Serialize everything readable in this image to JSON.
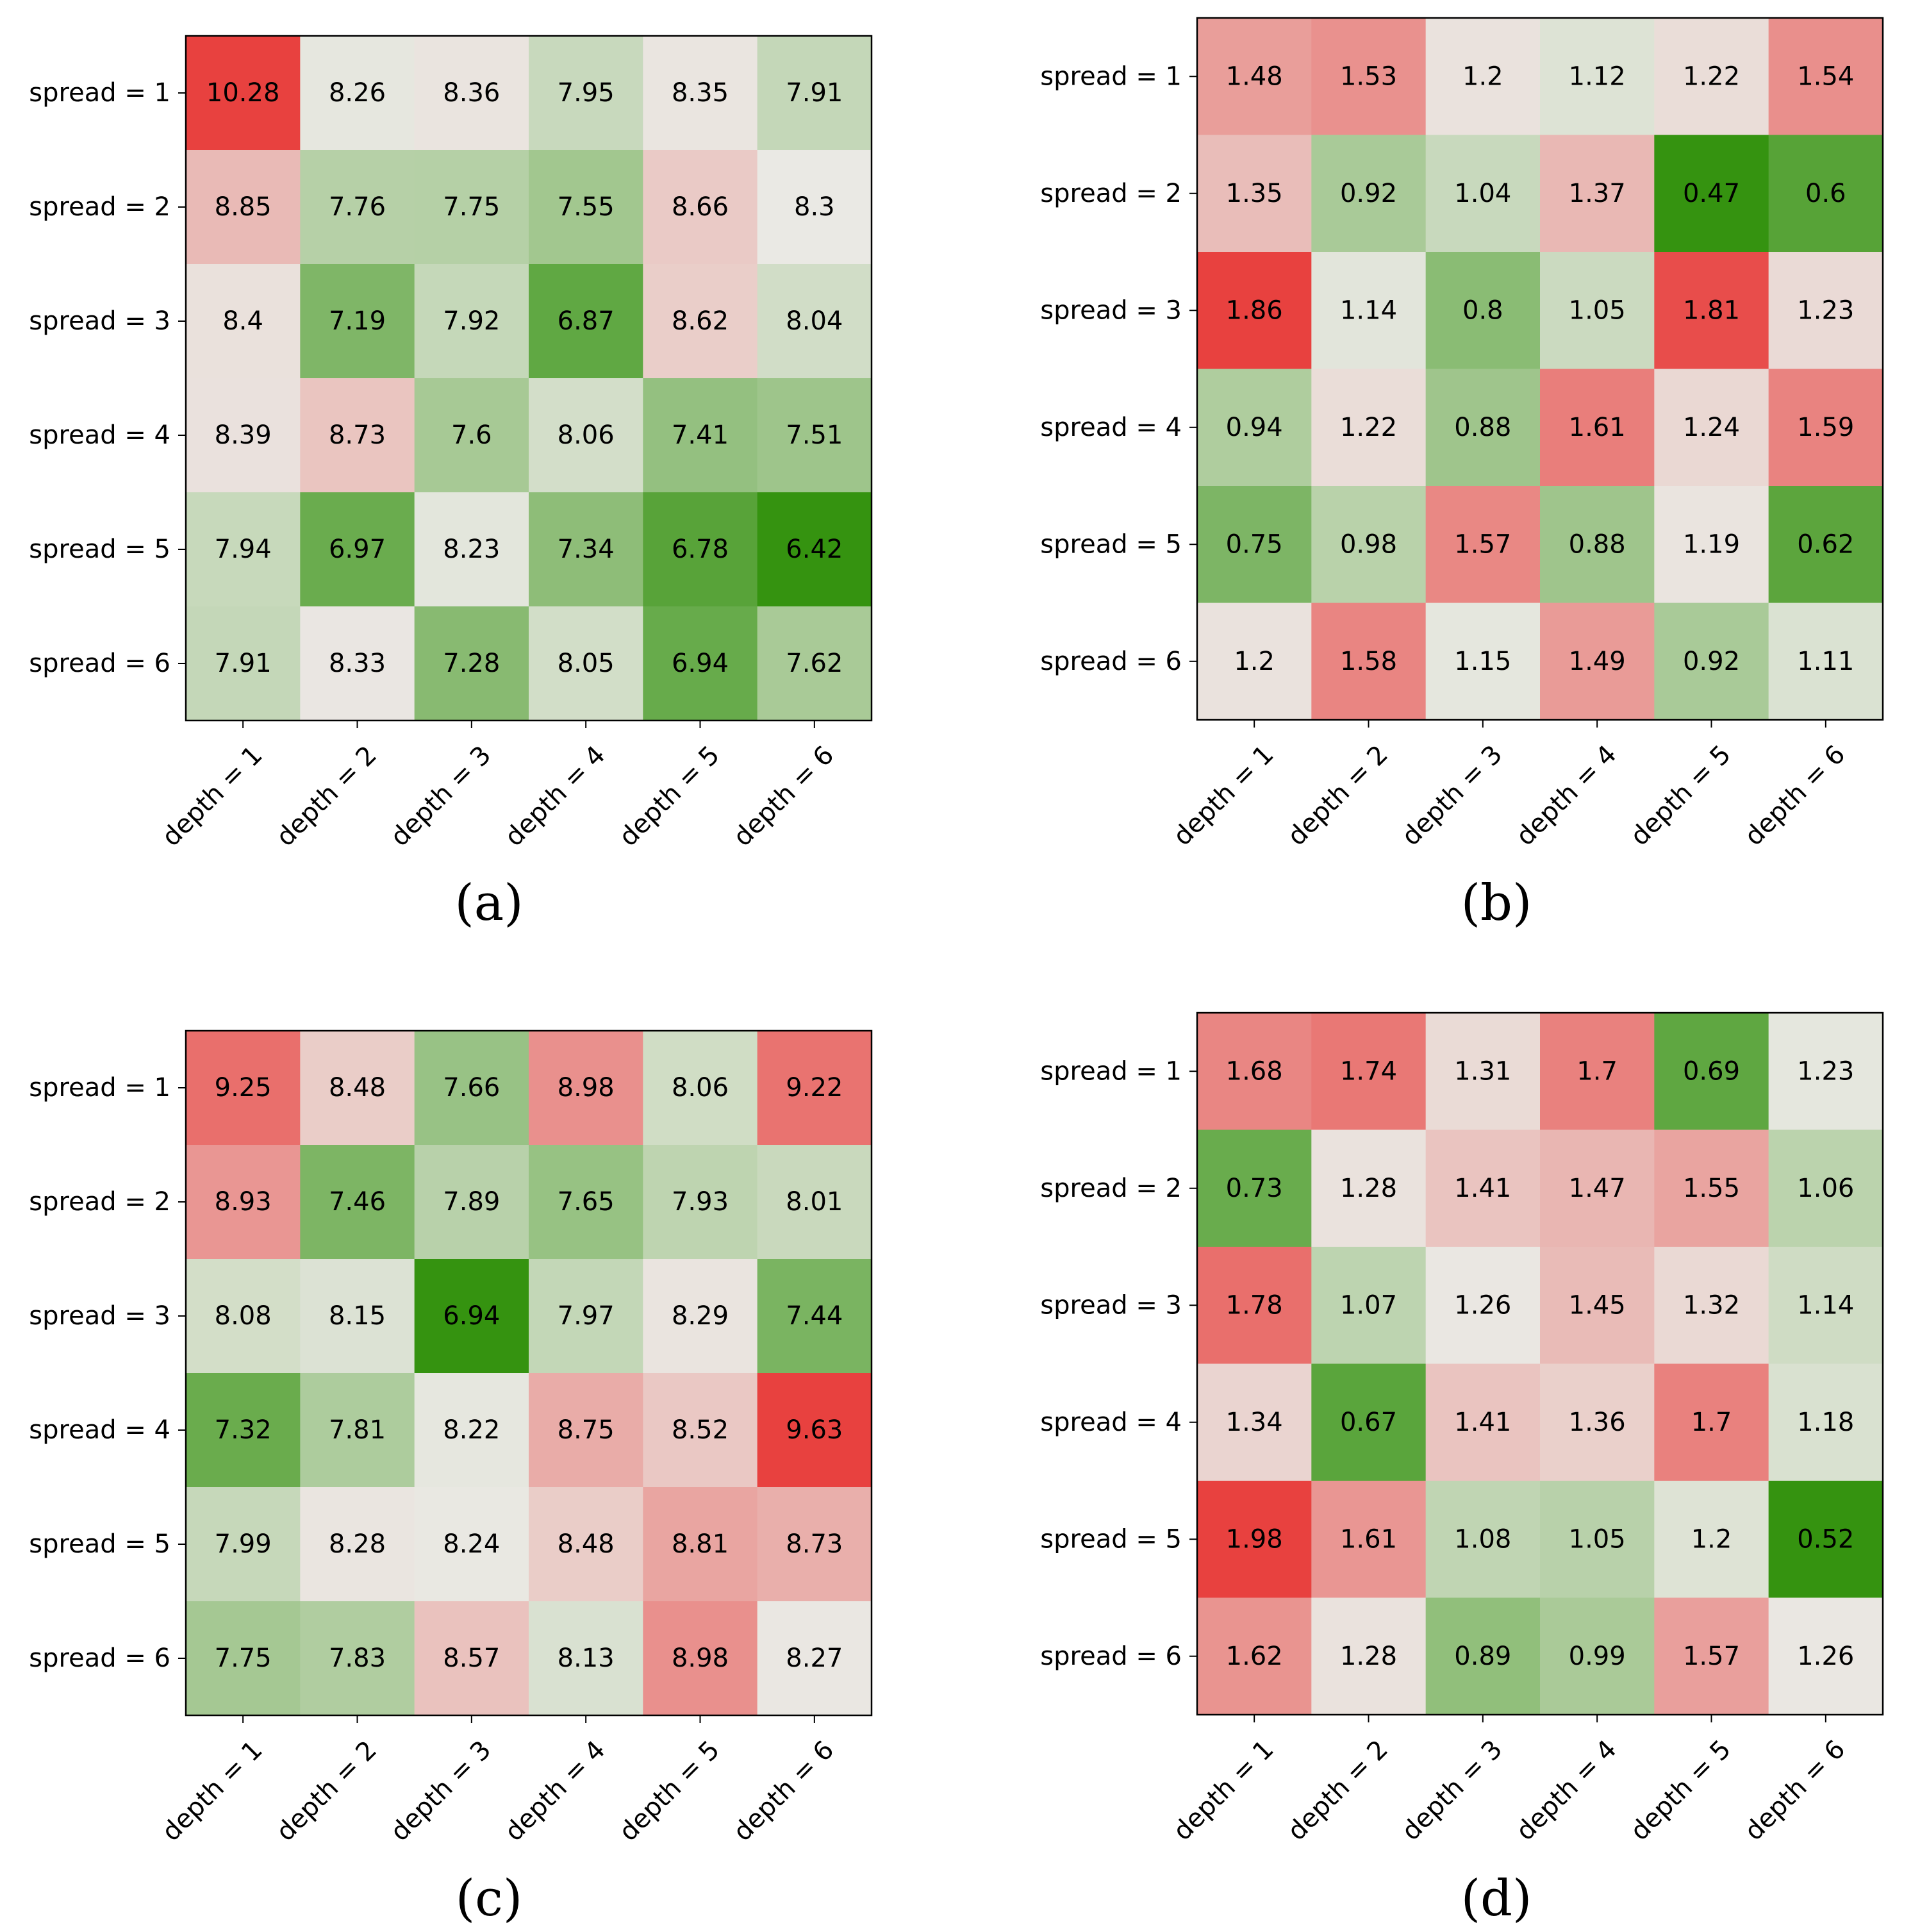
{
  "colors": {
    "green": "#359310",
    "neutral": "#eae9e4",
    "red": "#e8413f",
    "frame": "#000000"
  },
  "chart_data": [
    {
      "type": "heatmap",
      "caption": "(a)",
      "rows": [
        "spread = 1",
        "spread = 2",
        "spread = 3",
        "spread = 4",
        "spread = 5",
        "spread = 6"
      ],
      "columns": [
        "depth = 1",
        "depth = 2",
        "depth = 3",
        "depth = 4",
        "depth = 5",
        "depth = 6"
      ],
      "values": [
        [
          "10.28",
          "8.26",
          "8.36",
          "7.95",
          "8.35",
          "7.91"
        ],
        [
          "8.85",
          "7.76",
          "7.75",
          "7.55",
          "8.66",
          "8.3"
        ],
        [
          "8.4",
          "7.19",
          "7.92",
          "6.87",
          "8.62",
          "8.04"
        ],
        [
          "8.39",
          "8.73",
          "7.6",
          "8.06",
          "7.41",
          "7.51"
        ],
        [
          "7.94",
          "6.97",
          "8.23",
          "7.34",
          "6.78",
          "6.42"
        ],
        [
          "7.91",
          "8.33",
          "7.28",
          "8.05",
          "6.94",
          "7.62"
        ]
      ],
      "color_scale": {
        "low": 6.42,
        "mid": 8.3,
        "high": 10.28
      }
    },
    {
      "type": "heatmap",
      "caption": "(b)",
      "rows": [
        "spread = 1",
        "spread = 2",
        "spread = 3",
        "spread = 4",
        "spread = 5",
        "spread = 6"
      ],
      "columns": [
        "depth = 1",
        "depth = 2",
        "depth = 3",
        "depth = 4",
        "depth = 5",
        "depth = 6"
      ],
      "values": [
        [
          "1.48",
          "1.53",
          "1.2",
          "1.12",
          "1.22",
          "1.54"
        ],
        [
          "1.35",
          "0.92",
          "1.04",
          "1.37",
          "0.47",
          "0.6"
        ],
        [
          "1.86",
          "1.14",
          "0.8",
          "1.05",
          "1.81",
          "1.23"
        ],
        [
          "0.94",
          "1.22",
          "0.88",
          "1.61",
          "1.24",
          "1.59"
        ],
        [
          "0.75",
          "0.98",
          "1.57",
          "0.88",
          "1.19",
          "0.62"
        ],
        [
          "1.2",
          "1.58",
          "1.15",
          "1.49",
          "0.92",
          "1.11"
        ]
      ],
      "color_scale": {
        "low": 0.47,
        "mid": 1.17,
        "high": 1.86
      }
    },
    {
      "type": "heatmap",
      "caption": "(c)",
      "rows": [
        "spread = 1",
        "spread = 2",
        "spread = 3",
        "spread = 4",
        "spread = 5",
        "spread = 6"
      ],
      "columns": [
        "depth = 1",
        "depth = 2",
        "depth = 3",
        "depth = 4",
        "depth = 5",
        "depth = 6"
      ],
      "values": [
        [
          "9.25",
          "8.48",
          "7.66",
          "8.98",
          "8.06",
          "9.22"
        ],
        [
          "8.93",
          "7.46",
          "7.89",
          "7.65",
          "7.93",
          "8.01"
        ],
        [
          "8.08",
          "8.15",
          "6.94",
          "7.97",
          "8.29",
          "7.44"
        ],
        [
          "7.32",
          "7.81",
          "8.22",
          "8.75",
          "8.52",
          "9.63"
        ],
        [
          "7.99",
          "8.28",
          "8.24",
          "8.48",
          "8.81",
          "8.73"
        ],
        [
          "7.75",
          "7.83",
          "8.57",
          "8.13",
          "8.98",
          "8.27"
        ]
      ],
      "color_scale": {
        "low": 6.94,
        "mid": 8.25,
        "high": 9.63
      }
    },
    {
      "type": "heatmap",
      "caption": "(d)",
      "rows": [
        "spread = 1",
        "spread = 2",
        "spread = 3",
        "spread = 4",
        "spread = 5",
        "spread = 6"
      ],
      "columns": [
        "depth = 1",
        "depth = 2",
        "depth = 3",
        "depth = 4",
        "depth = 5",
        "depth = 6"
      ],
      "values": [
        [
          "1.68",
          "1.74",
          "1.31",
          "1.7",
          "0.69",
          "1.23"
        ],
        [
          "0.73",
          "1.28",
          "1.41",
          "1.47",
          "1.55",
          "1.06"
        ],
        [
          "1.78",
          "1.07",
          "1.26",
          "1.45",
          "1.32",
          "1.14"
        ],
        [
          "1.34",
          "0.67",
          "1.41",
          "1.36",
          "1.7",
          "1.18"
        ],
        [
          "1.98",
          "1.61",
          "1.08",
          "1.05",
          "1.2",
          "0.52"
        ],
        [
          "1.62",
          "1.28",
          "0.89",
          "0.99",
          "1.57",
          "1.26"
        ]
      ],
      "color_scale": {
        "low": 0.52,
        "mid": 1.25,
        "high": 1.98
      }
    }
  ]
}
